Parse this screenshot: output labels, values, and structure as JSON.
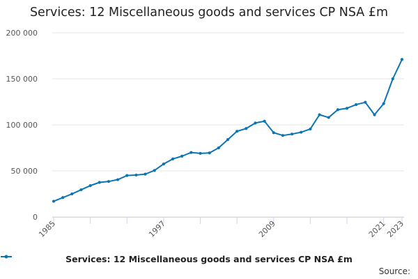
{
  "colors": {
    "series": "#0b75b4",
    "grid": "#e6e6e6",
    "axis": "#ccd6eb",
    "tick_text": "#555555"
  },
  "chart_data": {
    "type": "line",
    "title": "Services: 12 Miscellaneous goods and services CP NSA £m",
    "xlabel": "",
    "ylabel": "",
    "x": [
      1985,
      1986,
      1987,
      1988,
      1989,
      1990,
      1991,
      1992,
      1993,
      1994,
      1995,
      1996,
      1997,
      1998,
      1999,
      2000,
      2001,
      2002,
      2003,
      2004,
      2005,
      2006,
      2007,
      2008,
      2009,
      2010,
      2011,
      2012,
      2013,
      2014,
      2015,
      2016,
      2017,
      2018,
      2019,
      2020,
      2021,
      2022,
      2023
    ],
    "series": [
      {
        "name": "Services: 12 Miscellaneous goods and services CP NSA £m",
        "values": [
          17000,
          21000,
          25000,
          29500,
          34000,
          37500,
          38500,
          40500,
          45000,
          45500,
          46500,
          50500,
          57500,
          63000,
          66000,
          70000,
          69000,
          69500,
          75000,
          84000,
          93000,
          96000,
          102000,
          104000,
          91500,
          88500,
          90000,
          92000,
          95500,
          111000,
          108000,
          116500,
          118000,
          122000,
          124500,
          111000,
          123000,
          150000,
          171000
        ]
      }
    ],
    "xlim": [
      1985,
      2023
    ],
    "ylim": [
      0,
      200000
    ],
    "y_ticks": [
      0,
      50000,
      100000,
      150000,
      200000
    ],
    "y_tick_labels": [
      "0",
      "50 000",
      "100 000",
      "150 000",
      "200 000"
    ],
    "x_tick_labels": [
      "1985",
      "1997",
      "2009",
      "2021",
      "2023"
    ],
    "grid": true,
    "legend_position": "bottom",
    "source_label": "Source:"
  }
}
